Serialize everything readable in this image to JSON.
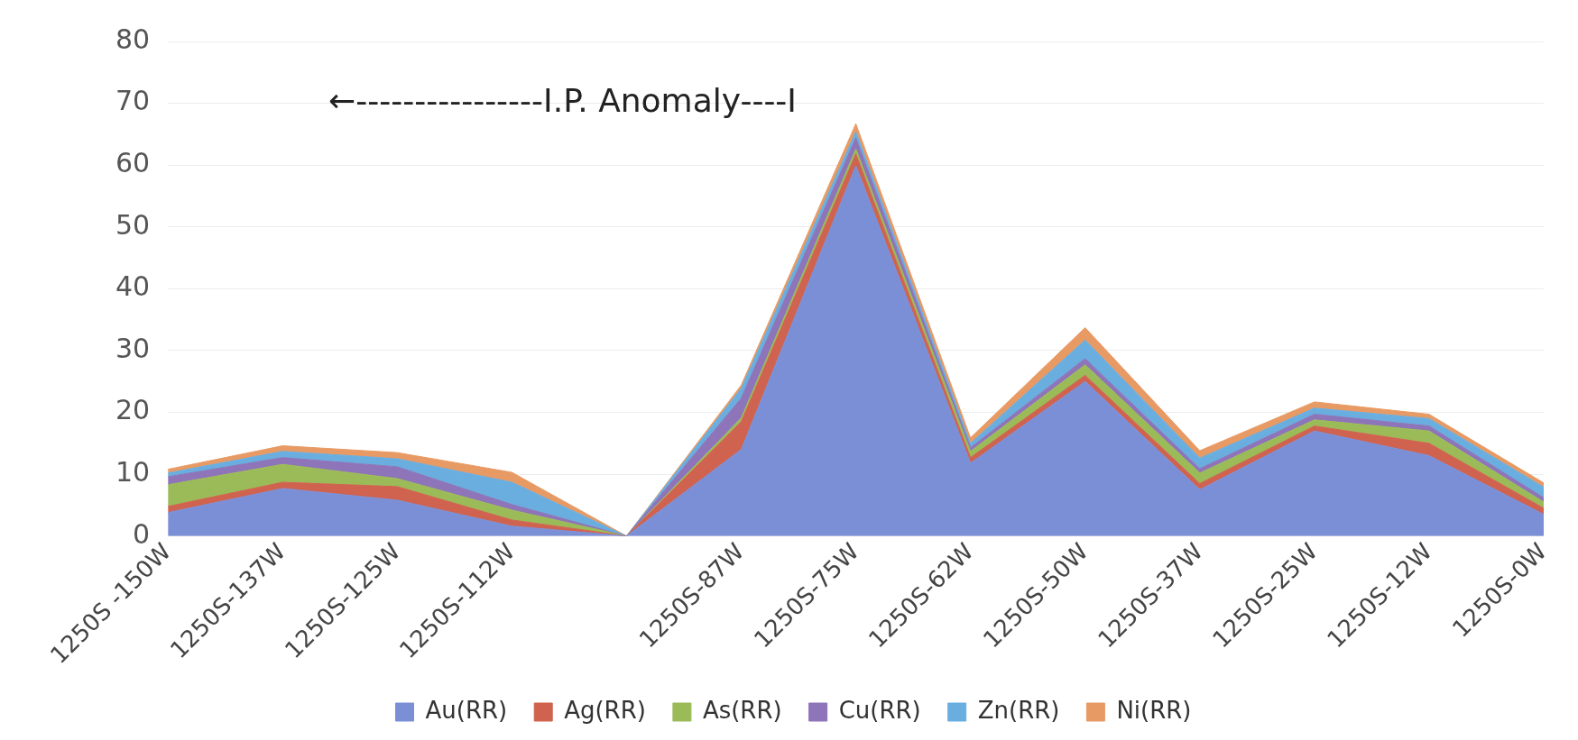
{
  "chart_data": {
    "type": "area",
    "stacked": true,
    "categories": [
      "1250S -150W",
      "1250S-137W",
      "1250S-125W",
      "1250S-112W",
      null,
      "1250S-87W",
      "1250S-75W",
      "1250S-62W",
      "1250S-50W",
      "1250S-37W",
      "1250S-25W",
      "1250S-12W",
      "1250S-0W"
    ],
    "series": [
      {
        "name": "Au(RR)",
        "color": "#7b8fd6",
        "values": [
          3.8,
          7.7,
          5.8,
          1.6,
          0,
          14,
          59.9,
          11.8,
          25,
          7.5,
          17,
          13,
          3.5
        ]
      },
      {
        "name": "Ag(RR)",
        "color": "#d0634f",
        "values": [
          1,
          1,
          2.2,
          1,
          0,
          4.5,
          1.9,
          0.9,
          1,
          1,
          0.8,
          2,
          1
        ]
      },
      {
        "name": "As(RR)",
        "color": "#9bbb59",
        "values": [
          3.5,
          2.9,
          1.3,
          1.6,
          0,
          0.6,
          0.8,
          1,
          1.7,
          1.7,
          1,
          2,
          1
        ]
      },
      {
        "name": "Cu(RR)",
        "color": "#8e74b8",
        "values": [
          1.3,
          1.1,
          1.9,
          0.9,
          0,
          3.2,
          1.8,
          0.6,
          1,
          0.7,
          0.9,
          0.8,
          0.7
        ]
      },
      {
        "name": "Zn(RR)",
        "color": "#6aaee0",
        "values": [
          0.6,
          1,
          1.3,
          3.6,
          0,
          1.6,
          1,
          0.7,
          3,
          1.7,
          1,
          1.2,
          1.7
        ]
      },
      {
        "name": "Ni(RR)",
        "color": "#e89a64",
        "values": [
          0.6,
          0.9,
          1,
          1.6,
          0,
          0.5,
          1.3,
          0.9,
          2,
          1.2,
          1,
          0.7,
          0.7
        ]
      }
    ],
    "ylim": [
      0,
      80
    ],
    "yticks": [
      0,
      10,
      20,
      30,
      40,
      50,
      60,
      70,
      80
    ],
    "grid": "y",
    "legend": "bottom",
    "annotations": [
      "←----------------I.P. Anomaly----I"
    ]
  }
}
